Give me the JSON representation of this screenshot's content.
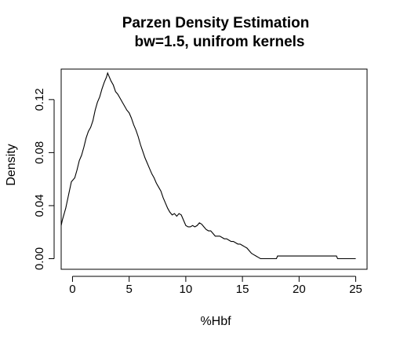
{
  "chart_data": {
    "type": "line",
    "title": "Parzen Density Estimation",
    "subtitle": "bw=1.5, unifrom kernels",
    "xlabel": "%Hbf",
    "ylabel": "Density",
    "xlim": [
      -1,
      26
    ],
    "ylim": [
      -0.008,
      0.143
    ],
    "xticks": [
      0,
      5,
      10,
      15,
      20,
      25
    ],
    "xtick_labels": [
      "0",
      "5",
      "10",
      "15",
      "20",
      "25"
    ],
    "yticks": [
      0.0,
      0.04,
      0.08,
      0.12
    ],
    "ytick_labels": [
      "0.00",
      "0.04",
      "0.08",
      "0.12"
    ],
    "grid": false,
    "legend": "none",
    "line_color": "#000000",
    "series": [
      {
        "x": [
          -1.0,
          -0.9,
          -0.8,
          -0.7,
          -0.6,
          -0.5,
          -0.4,
          -0.3,
          -0.2,
          -0.1,
          0.0,
          0.2,
          0.4,
          0.6,
          0.8,
          1.0,
          1.2,
          1.4,
          1.6,
          1.8,
          2.0,
          2.2,
          2.4,
          2.6,
          2.8,
          3.0,
          3.1,
          3.2,
          3.4,
          3.6,
          3.8,
          4.0,
          4.2,
          4.4,
          4.6,
          4.8,
          5.0,
          5.2,
          5.4,
          5.6,
          5.8,
          6.0,
          6.2,
          6.4,
          6.6,
          6.8,
          7.0,
          7.2,
          7.4,
          7.6,
          7.8,
          8.0,
          8.2,
          8.4,
          8.6,
          8.8,
          9.0,
          9.2,
          9.4,
          9.6,
          9.8,
          10.0,
          10.2,
          10.4,
          10.6,
          10.8,
          11.0,
          11.2,
          11.4,
          11.6,
          11.8,
          12.0,
          12.2,
          12.4,
          12.6,
          12.8,
          13.0,
          13.2,
          13.4,
          13.6,
          13.8,
          14.0,
          14.2,
          14.4,
          14.6,
          14.8,
          15.0,
          15.2,
          15.4,
          15.6,
          15.8,
          16.0,
          16.2,
          16.4,
          16.6,
          17.0,
          17.5,
          18.0,
          18.1,
          18.5,
          19.0,
          20.0,
          21.0,
          22.0,
          23.0,
          23.3,
          23.4,
          24.0,
          25.0
        ],
        "y": [
          0.025,
          0.029,
          0.032,
          0.035,
          0.038,
          0.042,
          0.046,
          0.05,
          0.054,
          0.058,
          0.059,
          0.061,
          0.067,
          0.074,
          0.078,
          0.084,
          0.091,
          0.096,
          0.099,
          0.104,
          0.112,
          0.118,
          0.122,
          0.128,
          0.133,
          0.137,
          0.14,
          0.138,
          0.134,
          0.131,
          0.126,
          0.124,
          0.121,
          0.118,
          0.115,
          0.112,
          0.11,
          0.106,
          0.101,
          0.097,
          0.092,
          0.086,
          0.081,
          0.076,
          0.072,
          0.068,
          0.064,
          0.061,
          0.057,
          0.054,
          0.051,
          0.046,
          0.042,
          0.038,
          0.035,
          0.033,
          0.034,
          0.032,
          0.034,
          0.033,
          0.029,
          0.025,
          0.024,
          0.024,
          0.025,
          0.024,
          0.025,
          0.027,
          0.026,
          0.024,
          0.022,
          0.021,
          0.021,
          0.019,
          0.017,
          0.017,
          0.017,
          0.016,
          0.015,
          0.015,
          0.014,
          0.013,
          0.013,
          0.012,
          0.011,
          0.011,
          0.01,
          0.009,
          0.008,
          0.006,
          0.004,
          0.003,
          0.002,
          0.001,
          0.0,
          0.0,
          0.0,
          0.0,
          0.002,
          0.002,
          0.002,
          0.002,
          0.002,
          0.002,
          0.002,
          0.002,
          0.0,
          0.0,
          0.0
        ]
      }
    ]
  }
}
